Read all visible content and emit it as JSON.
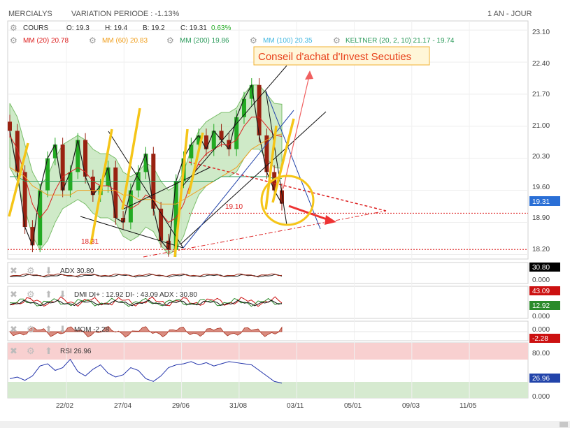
{
  "header": {
    "symbol": "MERCIALYS",
    "variation": "VARIATION PERIODE : -1.13%",
    "period": "1 AN - JOUR"
  },
  "legend": {
    "cours": {
      "label": "COURS",
      "o": "O: 19.3",
      "h": "H: 19.4",
      "b": "B: 19.2",
      "c": "C: 19.31",
      "pct": "0.63%"
    },
    "mm20": {
      "label": "MM (20) 20.78",
      "color": "#dd2222"
    },
    "mm60": {
      "label": "MM (60) 20.83",
      "color": "#f0a020"
    },
    "mm200": {
      "label": "MM (200) 19.86",
      "color": "#2a9a5a"
    },
    "mm100": {
      "label": "MM (100) 20.35",
      "color": "#44b8e0"
    },
    "keltner": {
      "label": "KELTNER (20, 2, 10) 21.17 - 19.74",
      "color": "#2a9a5a"
    }
  },
  "annotation": {
    "text": "Conseil d'achat d'Invest Secuties"
  },
  "levels": {
    "resistance": "19.10",
    "support": "18.31"
  },
  "panels": {
    "adx": {
      "label": "ADX 30.80"
    },
    "dmi": {
      "label": "DMI DI+ : 12.92 DI- : 43.09 ADX : 30.80"
    },
    "mom": {
      "label": "MOM -2.28"
    },
    "rsi": {
      "label": "RSI 26.96"
    }
  },
  "right_axis": {
    "price_ticks": [
      "23.10",
      "22.40",
      "21.70",
      "21.00",
      "20.30",
      "19.60",
      "18.90",
      "18.20"
    ],
    "price_badge": "19.31",
    "adx_badge": "30.80",
    "adx_zero": "0.000",
    "dmi_badge_red": "43.09",
    "dmi_badge_green": "12.92",
    "dmi_zero": "0.000",
    "mom_zero": "0.000",
    "mom_badge": "-2.28",
    "rsi_80": "80.00",
    "rsi_badge": "26.96",
    "rsi_zero": "0.000"
  },
  "x_axis": {
    "ticks": [
      "22/02",
      "27/04",
      "29/06",
      "31/08",
      "03/11",
      "05/01",
      "09/03",
      "11/05"
    ]
  },
  "colors": {
    "up": "#22aa22",
    "down": "#992211",
    "accent_red": "#dd2222",
    "badge_blue": "#2a6fd6",
    "yellow": "#f5c518"
  },
  "chart_data": {
    "type": "line",
    "title": "MERCIALYS",
    "subtitle": "VARIATION PERIODE : -1.13%",
    "x_ticks": [
      "22/02",
      "27/04",
      "29/06",
      "31/08",
      "03/11",
      "05/01",
      "09/03",
      "11/05"
    ],
    "y_ticks": [
      23.1,
      22.4,
      21.7,
      21.0,
      20.3,
      19.6,
      18.9,
      18.2
    ],
    "ylim": [
      18.1,
      23.3
    ],
    "series": [
      {
        "name": "COURS",
        "values": [
          20.9,
          20.0,
          18.8,
          18.4,
          19.6,
          20.3,
          20.6,
          19.6,
          20.0,
          20.7,
          19.9,
          19.5,
          19.7,
          20.1,
          19.0,
          18.9,
          19.6,
          20.0,
          20.4,
          19.2,
          18.5,
          18.3,
          19.8,
          20.3,
          20.6,
          20.8,
          20.5,
          20.9,
          20.7,
          20.5,
          21.2,
          21.6,
          21.9,
          20.8,
          20.0,
          19.6,
          19.31
        ]
      },
      {
        "name": "MM (20)",
        "values": [
          20.8,
          20.5,
          19.9,
          19.3,
          19.0,
          19.2,
          19.6,
          19.9,
          20.0,
          20.1,
          20.0,
          19.8,
          19.7,
          19.7,
          19.6,
          19.3,
          19.2,
          19.3,
          19.5,
          19.4,
          19.1,
          18.9,
          19.0,
          19.3,
          19.8,
          20.2,
          20.4,
          20.5,
          20.6,
          20.6,
          20.7,
          21.0,
          21.2,
          21.2,
          21.0,
          20.8,
          20.78
        ]
      },
      {
        "name": "MM (60)",
        "values": [
          20.1,
          20.0,
          19.9,
          19.7,
          19.6,
          19.5,
          19.5,
          19.5,
          19.5,
          19.6,
          19.6,
          19.6,
          19.6,
          19.6,
          19.6,
          19.5,
          19.5,
          19.4,
          19.4,
          19.4,
          19.3,
          19.3,
          19.3,
          19.4,
          19.5,
          19.6,
          19.7,
          19.8,
          19.9,
          20.0,
          20.1,
          20.3,
          20.5,
          20.6,
          20.7,
          20.8,
          20.83
        ]
      },
      {
        "name": "MM (200)",
        "values": [
          19.9,
          19.9,
          19.8,
          19.8,
          19.8,
          19.8,
          19.8,
          19.8,
          19.8,
          19.8,
          19.8,
          19.8,
          19.8,
          19.8,
          19.8,
          19.8,
          19.8,
          19.8,
          19.8,
          19.8,
          19.8,
          19.8,
          19.8,
          19.8,
          19.8,
          19.8,
          19.8,
          19.8,
          19.9,
          19.9,
          19.9,
          19.9,
          19.9,
          19.9,
          19.9,
          19.86,
          19.86
        ]
      }
    ],
    "rsi": [
      35,
      38,
      32,
      40,
      58,
      62,
      50,
      55,
      70,
      48,
      40,
      52,
      60,
      45,
      38,
      42,
      55,
      50,
      35,
      30,
      40,
      55,
      60,
      62,
      66,
      60,
      64,
      58,
      62,
      66,
      64,
      62,
      60,
      50,
      40,
      30,
      26.96
    ]
  }
}
